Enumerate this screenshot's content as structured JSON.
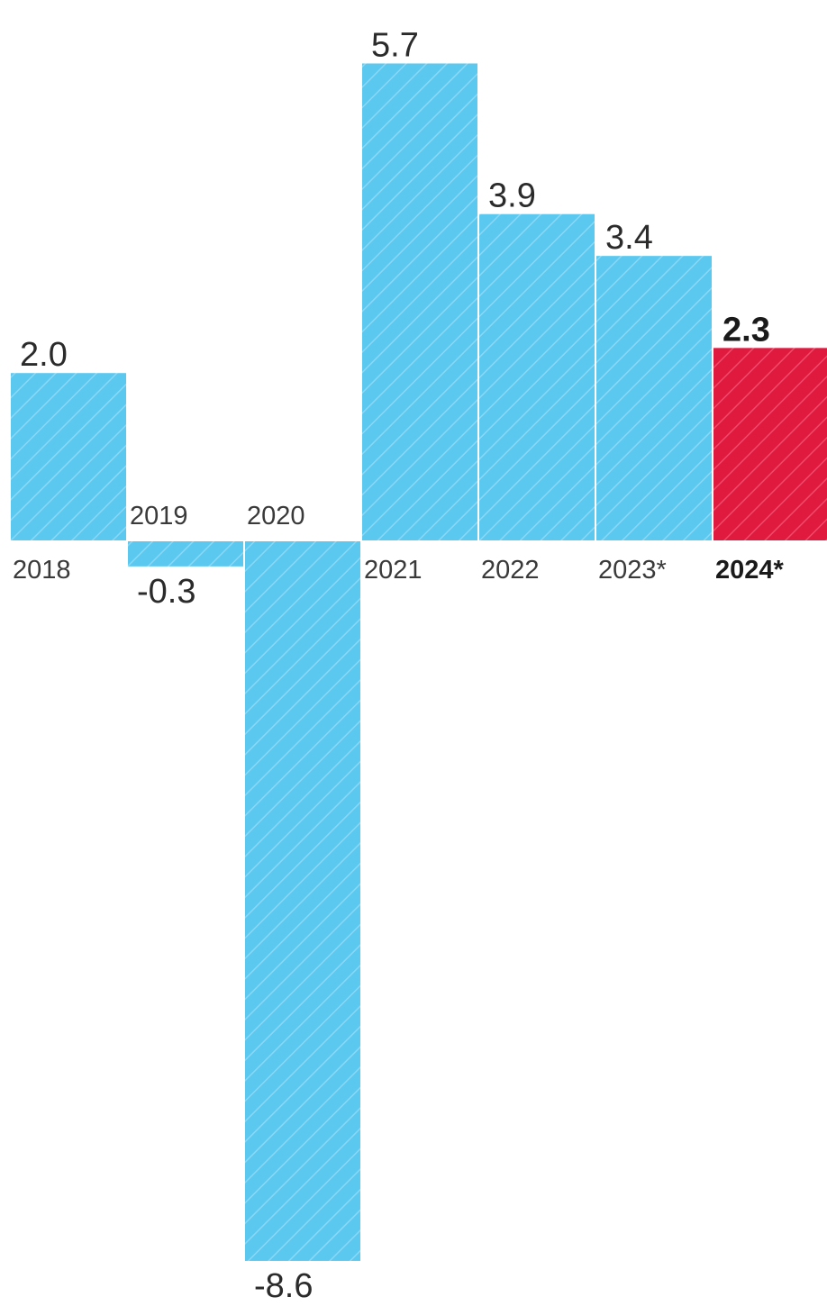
{
  "chart_data": {
    "type": "bar",
    "categories": [
      "2018",
      "2019",
      "2020",
      "2021",
      "2022",
      "2023*",
      "2024*"
    ],
    "values": [
      2.0,
      -0.3,
      -8.6,
      5.7,
      3.9,
      3.4,
      2.3
    ],
    "value_labels": [
      "2.0",
      "-0.3",
      "-8.6",
      "5.7",
      "3.9",
      "3.4",
      "2.3"
    ],
    "highlight_index": 6,
    "colors": {
      "bar": "#5bc8f0",
      "bar_hatch": "#8ad8f5",
      "highlight": "#e0193f",
      "highlight_hatch": "#ef4a68"
    },
    "title": "",
    "xlabel": "",
    "ylabel": "",
    "ylim": [
      -8.6,
      5.7
    ],
    "grid": false,
    "legend": "none"
  }
}
